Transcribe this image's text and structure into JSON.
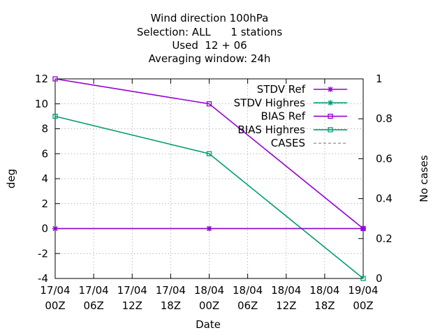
{
  "chart_data": {
    "type": "line",
    "title_lines": [
      "Wind direction 100hPa",
      "Selection: ALL      1 stations",
      "Used  12 + 06",
      "Averaging window: 24h"
    ],
    "xlabel": "Date",
    "ylabel": "deg",
    "y2label": "No cases",
    "x_ticks": [
      {
        "top": "17/04",
        "bottom": "00Z"
      },
      {
        "top": "17/04",
        "bottom": "06Z"
      },
      {
        "top": "17/04",
        "bottom": "12Z"
      },
      {
        "top": "17/04",
        "bottom": "18Z"
      },
      {
        "top": "18/04",
        "bottom": "00Z"
      },
      {
        "top": "18/04",
        "bottom": "06Z"
      },
      {
        "top": "18/04",
        "bottom": "12Z"
      },
      {
        "top": "18/04",
        "bottom": "18Z"
      },
      {
        "top": "19/04",
        "bottom": "00Z"
      }
    ],
    "ylim": [
      -4,
      12
    ],
    "y_ticks": [
      -4,
      -2,
      0,
      2,
      4,
      6,
      8,
      10,
      12
    ],
    "y2lim": [
      0,
      1
    ],
    "y2_ticks": [
      "0",
      "0.2",
      "0.4",
      "0.6",
      "0.8",
      "1"
    ],
    "grid": true,
    "legend_position": "top-right",
    "series": [
      {
        "name": "STDV Ref",
        "color": "#9400d3",
        "marker": "star",
        "x_index": [
          0,
          4,
          8
        ],
        "values": [
          0,
          0,
          0
        ]
      },
      {
        "name": "STDV Highres",
        "color": "#009e73",
        "marker": "star",
        "x_index": [
          0,
          4,
          8
        ],
        "values": [
          0,
          0,
          0
        ]
      },
      {
        "name": "BIAS Ref",
        "color": "#9400d3",
        "marker": "square",
        "x_index": [
          0,
          4,
          8
        ],
        "values": [
          12,
          10,
          0
        ]
      },
      {
        "name": "BIAS Highres",
        "color": "#009e73",
        "marker": "square",
        "x_index": [
          0,
          4,
          8
        ],
        "values": [
          9,
          6,
          -4
        ]
      },
      {
        "name": "CASES",
        "color": "#808080",
        "marker": "dashed",
        "x_index": [],
        "values": []
      }
    ]
  }
}
